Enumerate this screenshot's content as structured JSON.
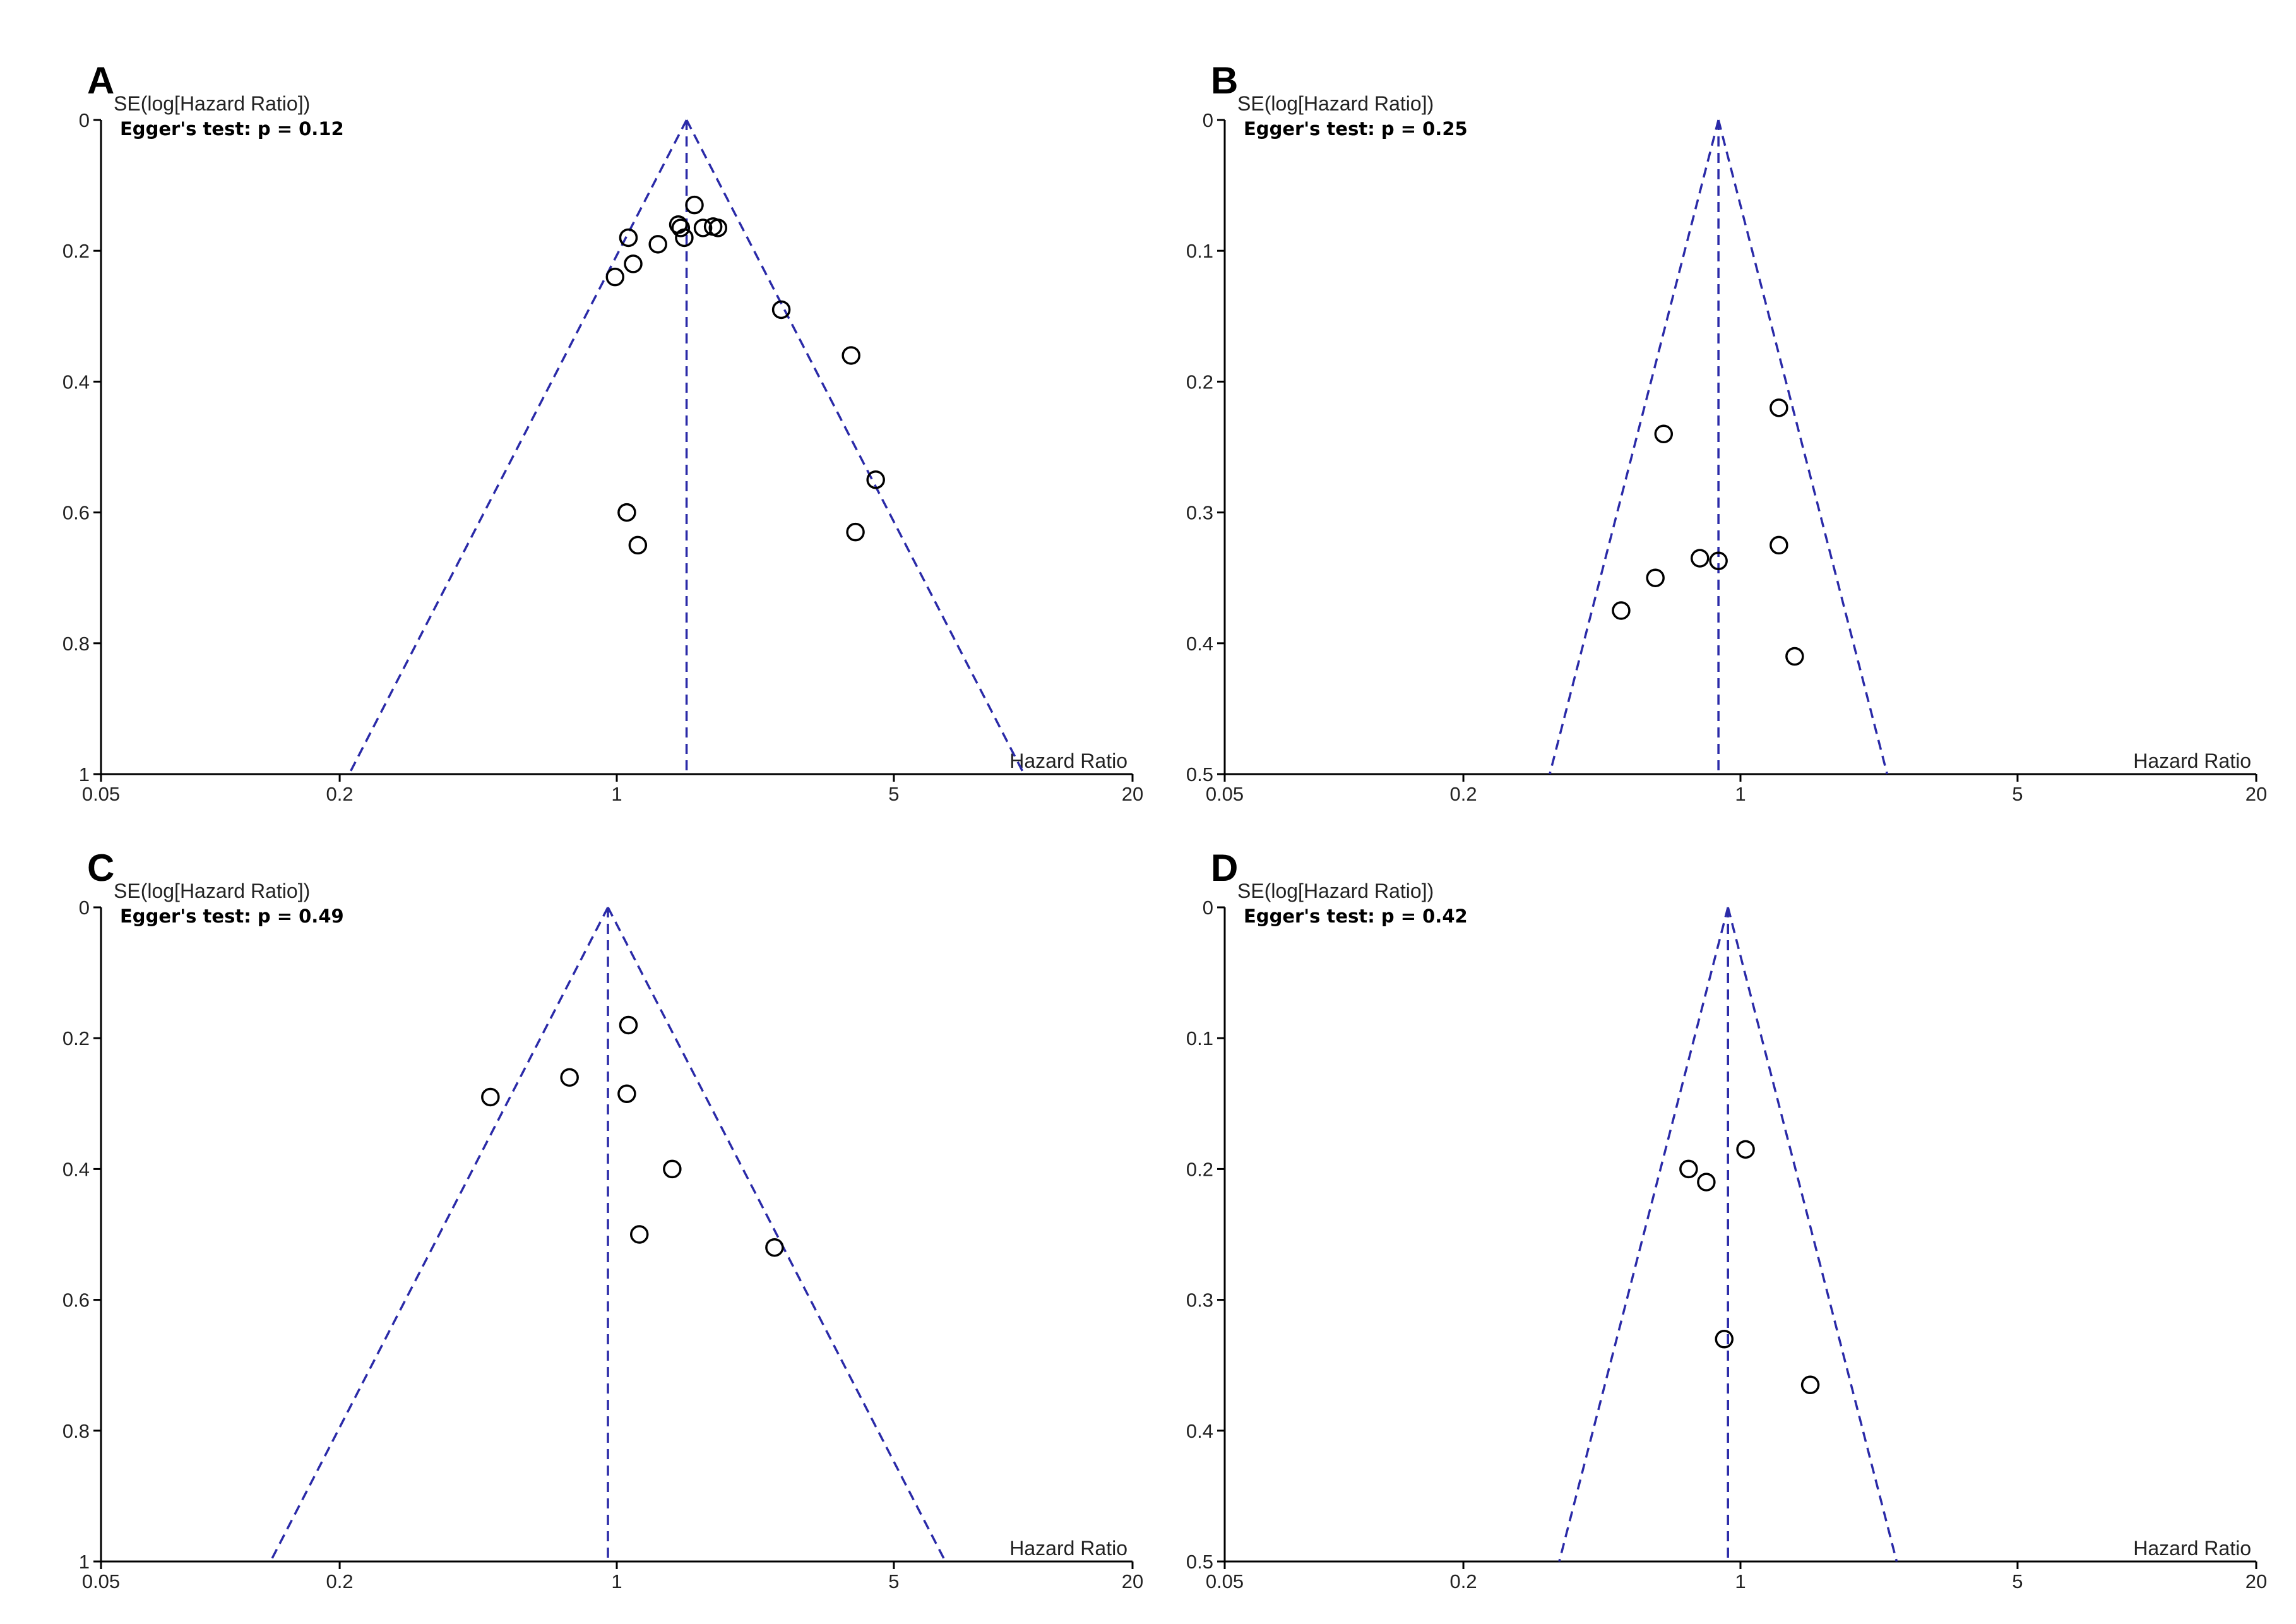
{
  "style": {
    "funnel_color": "#2a2aa8",
    "point_color": "#000000",
    "axis_color": "#000000"
  },
  "chart_data": [
    {
      "id": "A",
      "panel_label": "A",
      "type": "scatter",
      "ylabel": "SE(log[Hazard Ratio])",
      "annotation": "Egger's test: p = 0.12",
      "xlabel": "Hazard Ratio",
      "x_scale": "log",
      "x_ticks": [
        "0.05",
        "0.2",
        "1",
        "5",
        "20"
      ],
      "xlim": [
        0.05,
        20
      ],
      "y_ticks": [
        "0",
        "0.2",
        "0.4",
        "0.6",
        "0.8",
        "1"
      ],
      "ylim": [
        0,
        1
      ],
      "y_reversed": true,
      "pooled_hr": 1.5,
      "points": [
        {
          "x": 1.57,
          "y": 0.13
        },
        {
          "x": 1.07,
          "y": 0.18
        },
        {
          "x": 1.43,
          "y": 0.16
        },
        {
          "x": 1.45,
          "y": 0.165
        },
        {
          "x": 1.65,
          "y": 0.165
        },
        {
          "x": 1.75,
          "y": 0.163
        },
        {
          "x": 1.8,
          "y": 0.165
        },
        {
          "x": 1.27,
          "y": 0.19
        },
        {
          "x": 1.48,
          "y": 0.18
        },
        {
          "x": 1.1,
          "y": 0.22
        },
        {
          "x": 0.99,
          "y": 0.24
        },
        {
          "x": 2.6,
          "y": 0.29
        },
        {
          "x": 3.9,
          "y": 0.36
        },
        {
          "x": 4.5,
          "y": 0.55
        },
        {
          "x": 1.06,
          "y": 0.6
        },
        {
          "x": 1.13,
          "y": 0.65
        },
        {
          "x": 4.0,
          "y": 0.63
        }
      ]
    },
    {
      "id": "B",
      "panel_label": "B",
      "type": "scatter",
      "ylabel": "SE(log[Hazard Ratio])",
      "annotation": "Egger's test: p = 0.25",
      "xlabel": "Hazard Ratio",
      "x_scale": "log",
      "x_ticks": [
        "0.05",
        "0.2",
        "1",
        "5",
        "20"
      ],
      "xlim": [
        0.05,
        20
      ],
      "y_ticks": [
        "0",
        "0.1",
        "0.2",
        "0.3",
        "0.4",
        "0.5"
      ],
      "ylim": [
        0,
        0.5
      ],
      "y_reversed": true,
      "pooled_hr": 0.88,
      "points": [
        {
          "x": 1.25,
          "y": 0.22
        },
        {
          "x": 0.64,
          "y": 0.24
        },
        {
          "x": 1.25,
          "y": 0.325
        },
        {
          "x": 0.79,
          "y": 0.335
        },
        {
          "x": 0.88,
          "y": 0.337
        },
        {
          "x": 0.61,
          "y": 0.35
        },
        {
          "x": 0.5,
          "y": 0.375
        },
        {
          "x": 1.37,
          "y": 0.41
        }
      ]
    },
    {
      "id": "C",
      "panel_label": "C",
      "type": "scatter",
      "ylabel": "SE(log[Hazard Ratio])",
      "annotation": "Egger's test: p = 0.49",
      "xlabel": "Hazard Ratio",
      "x_scale": "log",
      "x_ticks": [
        "0.05",
        "0.2",
        "1",
        "5",
        "20"
      ],
      "xlim": [
        0.05,
        20
      ],
      "y_ticks": [
        "0",
        "0.2",
        "0.4",
        "0.6",
        "0.8",
        "1"
      ],
      "ylim": [
        0,
        1
      ],
      "y_reversed": true,
      "pooled_hr": 0.95,
      "points": [
        {
          "x": 1.07,
          "y": 0.18
        },
        {
          "x": 0.76,
          "y": 0.26
        },
        {
          "x": 0.48,
          "y": 0.29
        },
        {
          "x": 1.06,
          "y": 0.285
        },
        {
          "x": 1.38,
          "y": 0.4
        },
        {
          "x": 1.14,
          "y": 0.5
        },
        {
          "x": 2.5,
          "y": 0.52
        }
      ]
    },
    {
      "id": "D",
      "panel_label": "D",
      "type": "scatter",
      "ylabel": "SE(log[Hazard Ratio])",
      "annotation": "Egger's test: p = 0.42",
      "xlabel": "Hazard Ratio",
      "x_scale": "log",
      "x_ticks": [
        "0.05",
        "0.2",
        "1",
        "5",
        "20"
      ],
      "xlim": [
        0.05,
        20
      ],
      "y_ticks": [
        "0",
        "0.1",
        "0.2",
        "0.3",
        "0.4",
        "0.5"
      ],
      "ylim": [
        0,
        0.5
      ],
      "y_reversed": true,
      "pooled_hr": 0.93,
      "points": [
        {
          "x": 1.03,
          "y": 0.185
        },
        {
          "x": 0.74,
          "y": 0.2
        },
        {
          "x": 0.82,
          "y": 0.21
        },
        {
          "x": 0.91,
          "y": 0.33
        },
        {
          "x": 1.5,
          "y": 0.365
        }
      ]
    }
  ]
}
